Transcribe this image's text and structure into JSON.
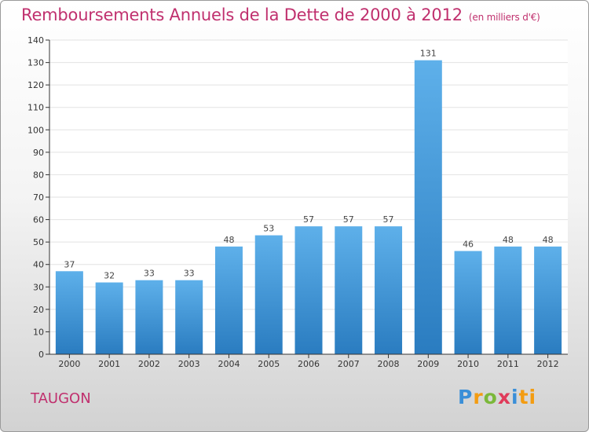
{
  "chart_data": {
    "type": "bar",
    "title": "Remboursements Annuels de la Dette de 2000 à 2012",
    "unit_note": "(en milliers d'€)",
    "categories": [
      "2000",
      "2001",
      "2002",
      "2003",
      "2004",
      "2005",
      "2006",
      "2007",
      "2008",
      "2009",
      "2010",
      "2011",
      "2012"
    ],
    "values": [
      37,
      32,
      33,
      33,
      48,
      53,
      57,
      57,
      57,
      131,
      46,
      48,
      48
    ],
    "ylim": [
      0,
      140
    ],
    "yticks": [
      0,
      10,
      20,
      30,
      40,
      50,
      60,
      70,
      80,
      90,
      100,
      110,
      120,
      130,
      140
    ],
    "grid": true,
    "xlabel": "",
    "ylabel": ""
  },
  "colors": {
    "title": "#c0306e",
    "bar_top": "#5eb0ea",
    "bar_bottom": "#2a7cc0",
    "grid": "#e2e2e2",
    "axis": "#333333"
  },
  "footer": {
    "place": "TAUGON"
  },
  "logo": {
    "name": "Proxiti",
    "letters": [
      "P",
      "r",
      "o",
      "x",
      "i",
      "ti"
    ]
  }
}
